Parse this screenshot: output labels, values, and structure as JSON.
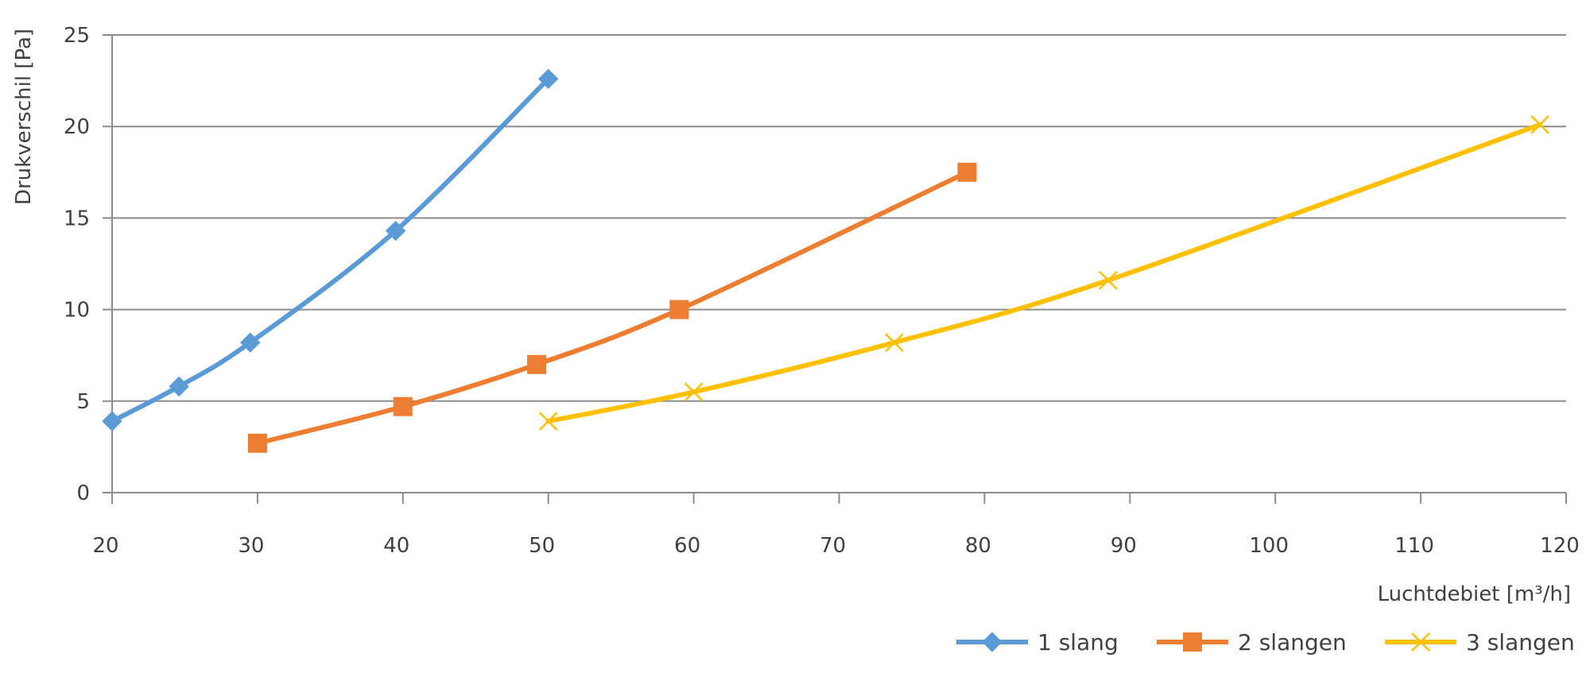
{
  "chart_data": {
    "type": "line",
    "xlabel": "Luchtdebiet [m³/h]",
    "ylabel": "Drukverschil [Pa]",
    "xlim": [
      20,
      120
    ],
    "ylim": [
      0,
      25
    ],
    "x_ticks": [
      "20",
      "30",
      "40",
      "50",
      "60",
      "70",
      "80",
      "90",
      "100",
      "110",
      "120"
    ],
    "y_ticks": [
      "0",
      "5",
      "10",
      "15",
      "20",
      "25"
    ],
    "grid": "horizontal",
    "legend": "bottom-right",
    "series": [
      {
        "name": "1 slang",
        "color": "#5B9BD5",
        "marker": "diamond",
        "points": [
          [
            20,
            3.9
          ],
          [
            24.6,
            5.8
          ],
          [
            29.5,
            8.2
          ],
          [
            39.5,
            14.3
          ],
          [
            50,
            22.6
          ]
        ]
      },
      {
        "name": "2 slangen",
        "color": "#ED7D31",
        "marker": "square",
        "points": [
          [
            30,
            2.7
          ],
          [
            40,
            4.7
          ],
          [
            49.2,
            7.0
          ],
          [
            59,
            10.0
          ],
          [
            78.8,
            17.5
          ]
        ]
      },
      {
        "name": "3 slangen",
        "color": "#FFC000",
        "marker": "x",
        "points": [
          [
            50,
            3.9
          ],
          [
            60,
            5.5
          ],
          [
            73.8,
            8.2
          ],
          [
            88.5,
            11.6
          ],
          [
            118.2,
            20.1
          ]
        ]
      }
    ]
  }
}
